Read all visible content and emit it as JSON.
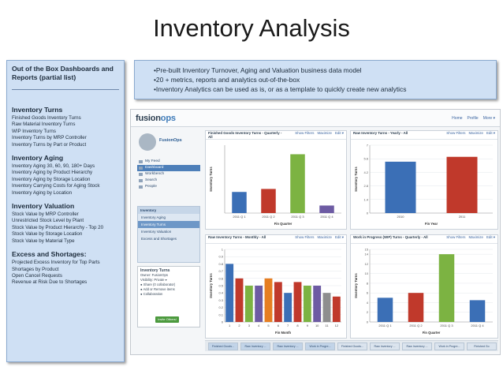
{
  "slide_title": "Inventory Analysis",
  "side": {
    "header": "Out of the Box Dashboards and Reports (partial list)",
    "sections": [
      {
        "title": "Inventory Turns",
        "items": [
          "Finished Goods Inventory Turns",
          "Raw Material Inventory Turns",
          "WIP Inventory Turns",
          "Inventory Turns by MRP Controller",
          "Inventory Turns by Part or Product"
        ]
      },
      {
        "title": "Inventory Aging",
        "items": [
          "Inventory Aging 30, 60, 90, 180+ Days",
          "Inventory Aging by Product Hierarchy",
          "Inventory Aging by Storage Location",
          "Inventory Carrying Costs for Aging Stock",
          "Inventory Aging by Location"
        ]
      },
      {
        "title": "Inventory Valuation",
        "items": [
          "Stock Value by MRP Controller",
          "Unrestricted Stock Level by Plant",
          "Stock Value by Product Hierarchy - Top 20",
          "Stock Value by Storage Location",
          "Stock Value by Material Type"
        ]
      },
      {
        "title": "Excess and Shortages:",
        "items": [
          "Projected Excess Inventory for Top Parts",
          "Shortages by Product",
          "Open Cancel Requests",
          "Revenue at Risk Due to Shortages"
        ]
      }
    ]
  },
  "bullets": [
    "•Pre-built Inventory Turnover, Aging and Valuation business data model",
    "•20 + metrics, reports and analytics out-of-the-box",
    "•Inventory Analytics can be used as is, or as a template to quickly create new analytics"
  ],
  "app": {
    "logo_a": "fusion",
    "logo_b": "ops",
    "top_links": [
      "Home",
      "Profile",
      "More ▾"
    ],
    "user_name": "FusionOps",
    "nav": [
      "My Feed",
      "Dashboard",
      "Workbench",
      "Search",
      "People"
    ],
    "nav_active": "Dashboard",
    "inv_panel_title": "Inventory",
    "inv_items": [
      "Inventory Aging",
      "Inventory Turns",
      "Inventory Valuation",
      "Excess and Shortages"
    ],
    "inv_active": "Inventory Turns",
    "turns_panel": {
      "title": "Inventory Turns",
      "lines": [
        "Owner: FusionOps",
        "Visibility: Private ▾",
        "● Share (0 collaborator)",
        "● Add or Remove items",
        "● Collaboration"
      ],
      "invite": "Invite Others!"
    },
    "card_actions": [
      "Show Filters",
      "Maximize",
      "Edit ▾"
    ],
    "bottom_tabs": [
      "Finished Goods...",
      "Raw Inventory ...",
      "Raw Inventory ...",
      "Work in Progre...",
      "Finished Goods...",
      "Raw Inventory ...",
      "Raw Inventory ...",
      "Work in Progre...",
      "Finished Go"
    ]
  },
  "chart_data": [
    {
      "type": "bar",
      "title": "Finished Goods Inventory Turns - Quarterly - All",
      "xlabel": "Fin Quarter",
      "ylabel": "Inventory Turns",
      "categories": [
        "2011 Q 1",
        "2011 Q 2",
        "2011 Q 3",
        "2011 Q 4"
      ],
      "values": [
        1.4,
        1.6,
        3.9,
        0.5
      ],
      "colors": [
        "#3b6fb6",
        "#c0392b",
        "#7cb342",
        "#6d5ba3"
      ],
      "ylim": [
        0,
        4.5
      ],
      "ticks": []
    },
    {
      "type": "bar",
      "title": "Raw Inventory Turns - Yearly - All",
      "xlabel": "Fin Year",
      "ylabel": "Inventory Turns",
      "categories": [
        "2010",
        "2011"
      ],
      "values": [
        5.3,
        5.8
      ],
      "colors": [
        "#3b6fb6",
        "#c0392b"
      ],
      "ylim": [
        0,
        7
      ],
      "ticks": [
        0,
        1.4,
        2.8,
        4.2,
        5.6,
        7
      ]
    },
    {
      "type": "bar",
      "title": "Raw Inventory Turns - Monthly - All",
      "xlabel": "Fin Month",
      "ylabel": "Inventory Turns",
      "categories": [
        "1",
        "2",
        "3",
        "4",
        "5",
        "6",
        "7",
        "8",
        "9",
        "10",
        "11",
        "12"
      ],
      "values": [
        0.8,
        0.6,
        0.5,
        0.5,
        0.6,
        0.55,
        0.4,
        0.55,
        0.5,
        0.5,
        0.4,
        0.35
      ],
      "colors": [
        "#3b6fb6",
        "#c0392b",
        "#7cb342",
        "#6d5ba3",
        "#e67e22",
        "#c0392b",
        "#3b6fb6",
        "#c0392b",
        "#7cb342",
        "#6d5ba3",
        "#8e8e8e",
        "#c0392b"
      ],
      "ylim": [
        0,
        1
      ],
      "ticks": [
        0,
        0.1,
        0.2,
        0.3,
        0.4,
        0.5,
        0.6,
        0.7,
        0.8,
        0.9,
        1
      ]
    },
    {
      "type": "bar",
      "title": "Work in Progress (WIP) Turns - Quarterly - All",
      "xlabel": "Fin Quarter",
      "ylabel": "Inventory Turns",
      "categories": [
        "2011 Q 1",
        "2011 Q 2",
        "2011 Q 3",
        "2011 Q 4"
      ],
      "values": [
        5,
        6,
        14,
        4.5
      ],
      "colors": [
        "#3b6fb6",
        "#c0392b",
        "#7cb342",
        "#3b6fb6"
      ],
      "ylim": [
        0,
        15
      ],
      "ticks": [
        0,
        2,
        4,
        6,
        8,
        10,
        12,
        14,
        15
      ]
    }
  ]
}
